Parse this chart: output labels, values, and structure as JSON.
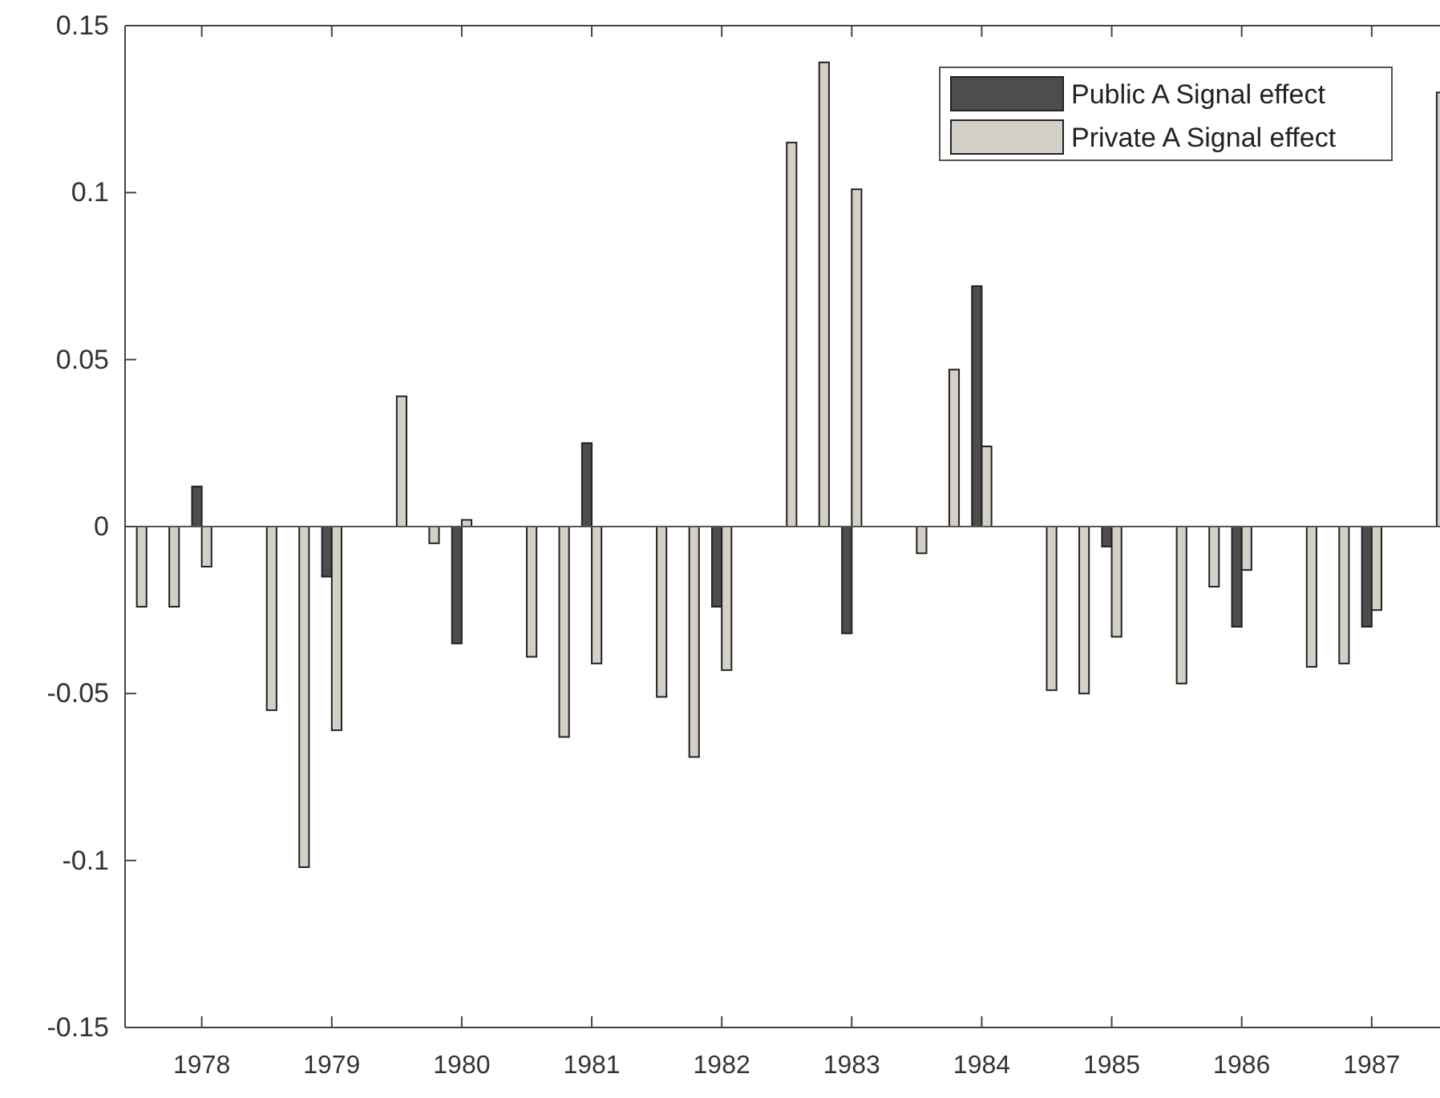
{
  "chart_data": {
    "type": "bar",
    "x": [
      1977.5,
      1977.75,
      1978,
      1978.5,
      1978.75,
      1979,
      1979.5,
      1979.75,
      1980,
      1980.5,
      1980.75,
      1981,
      1981.5,
      1981.75,
      1982,
      1982.5,
      1982.75,
      1983,
      1983.5,
      1983.75,
      1984,
      1984.5,
      1984.75,
      1985,
      1985.5,
      1985.75,
      1986,
      1986.5,
      1986.75,
      1987,
      1987.5
    ],
    "series": [
      {
        "name": "Public A Signal effect",
        "color": "#4d4d4d",
        "values": [
          0,
          0,
          0.012,
          0,
          0,
          -0.015,
          0,
          0,
          -0.035,
          0,
          0,
          0.025,
          0,
          0,
          -0.024,
          0,
          0,
          -0.032,
          0,
          0,
          0.072,
          0,
          0,
          -0.006,
          0,
          0,
          -0.03,
          0,
          0,
          -0.03,
          0
        ]
      },
      {
        "name": "Private A Signal effect",
        "color": "#d4d0c8",
        "values": [
          -0.024,
          -0.024,
          -0.012,
          -0.055,
          -0.102,
          -0.061,
          0.039,
          -0.005,
          0.002,
          -0.039,
          -0.063,
          -0.041,
          -0.051,
          -0.069,
          -0.043,
          0.115,
          0.139,
          0.101,
          -0.008,
          0.047,
          0.024,
          -0.049,
          -0.05,
          -0.033,
          -0.047,
          -0.018,
          -0.013,
          -0.042,
          -0.041,
          -0.025,
          0.13
        ]
      }
    ],
    "xlim": [
      1977.41,
      1987.55
    ],
    "xticks": [
      1978,
      1979,
      1980,
      1981,
      1982,
      1983,
      1984,
      1985,
      1986,
      1987
    ],
    "ylim": [
      -0.15,
      0.15
    ],
    "yticks": [
      {
        "value": -0.15,
        "label": "-0.15"
      },
      {
        "value": -0.1,
        "label": "-0.1"
      },
      {
        "value": -0.05,
        "label": "-0.05"
      },
      {
        "value": 0,
        "label": "0"
      },
      {
        "value": 0.05,
        "label": "0.05"
      },
      {
        "value": 0.1,
        "label": "0.1"
      },
      {
        "value": 0.15,
        "label": "0.15"
      }
    ],
    "legend": "top right"
  }
}
